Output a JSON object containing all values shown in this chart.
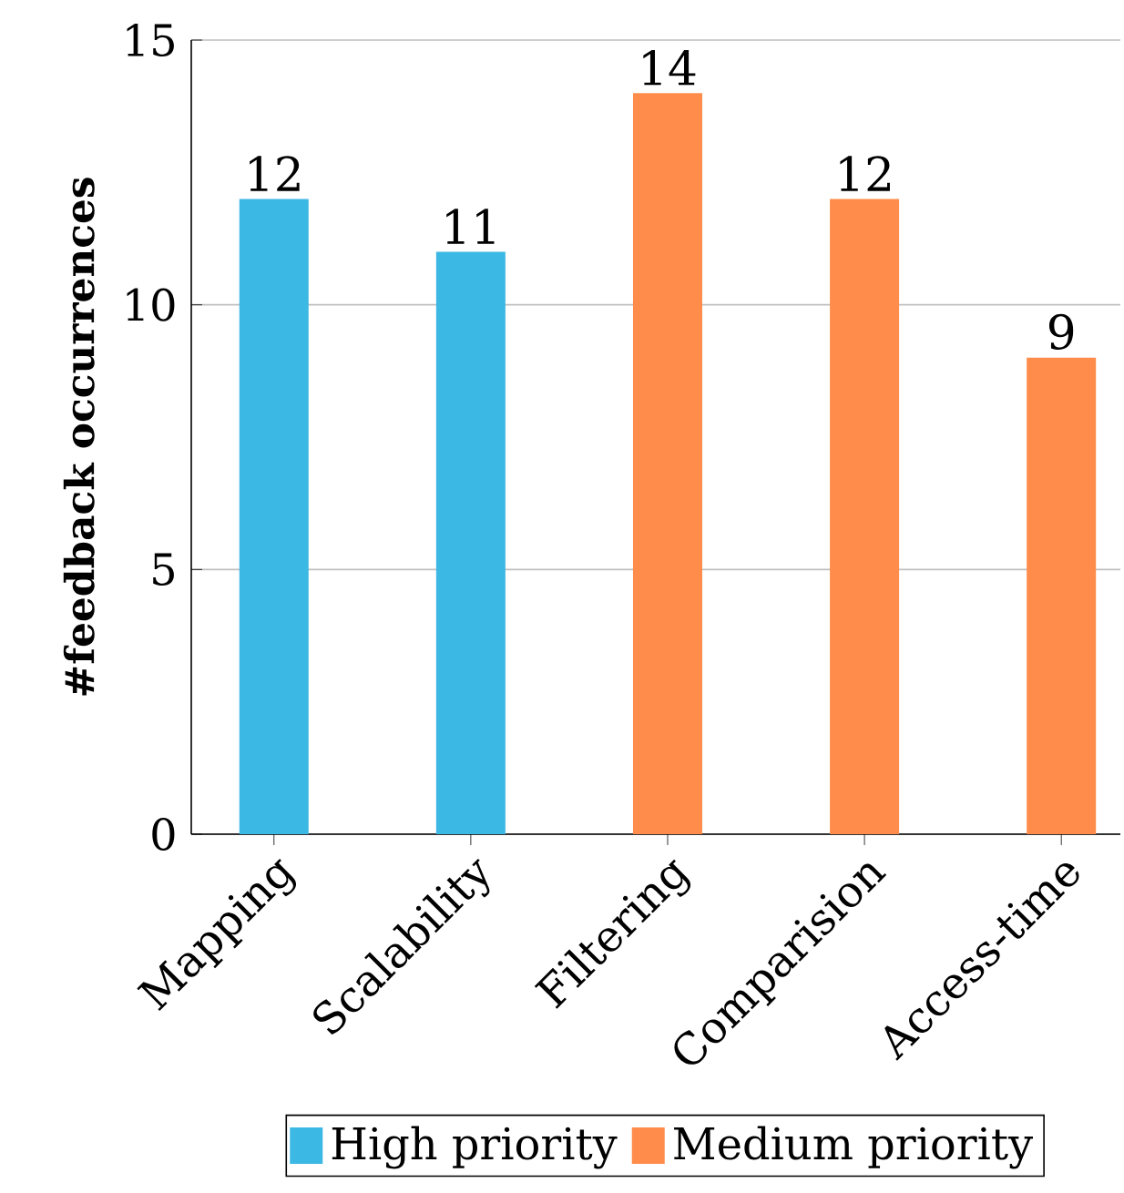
{
  "chart_data": {
    "type": "bar",
    "ylabel": "#feedback occurrences",
    "categories": [
      "Mapping",
      "Scalability",
      "Filtering",
      "Comparision",
      "Access-time"
    ],
    "series": [
      {
        "name": "High priority",
        "color": "#3cb8e4",
        "values": [
          12,
          11,
          null,
          null,
          null
        ]
      },
      {
        "name": "Medium priority",
        "color": "#ff8c4b",
        "values": [
          null,
          null,
          14,
          12,
          9
        ]
      }
    ],
    "ylim": [
      0,
      15
    ],
    "yticks": [
      0,
      5,
      10,
      15
    ],
    "grid": "y",
    "legend": "bottom",
    "data_labels": true
  }
}
